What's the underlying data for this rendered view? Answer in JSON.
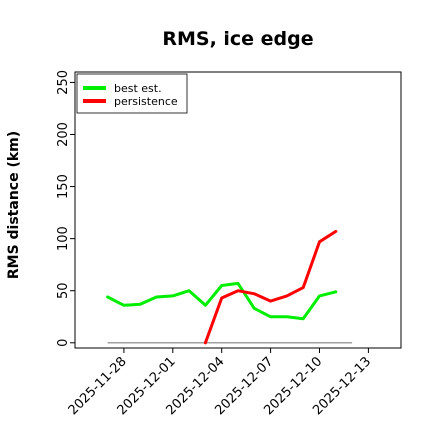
{
  "chart_data": {
    "type": "line",
    "title": "RMS, ice edge",
    "xlabel": "",
    "ylabel": "RMS distance (km)",
    "ylim": [
      -5,
      260
    ],
    "yticks": [
      0,
      50,
      100,
      150,
      200,
      250
    ],
    "xlim": [
      "2025-11-25",
      "2025-12-15"
    ],
    "xticks": [
      "2025-11-28",
      "2025-12-01",
      "2025-12-04",
      "2025-12-07",
      "2025-12-10",
      "2025-12-13"
    ],
    "grid": false,
    "legend": "top-left",
    "baseline": {
      "value": 0,
      "from": "2025-11-27",
      "to": "2025-12-12",
      "color": "#808080"
    },
    "series": [
      {
        "name": "best est.",
        "color": "#00ee00",
        "x": [
          "2025-11-27",
          "2025-11-28",
          "2025-11-29",
          "2025-11-30",
          "2025-12-01",
          "2025-12-02",
          "2025-12-03",
          "2025-12-04",
          "2025-12-05",
          "2025-12-06",
          "2025-12-07",
          "2025-12-08",
          "2025-12-09",
          "2025-12-10",
          "2025-12-11"
        ],
        "values": [
          44,
          36,
          37,
          44,
          45,
          50,
          36,
          55,
          57,
          33,
          25,
          25,
          23,
          45,
          49
        ]
      },
      {
        "name": "persistence",
        "color": "#ff0000",
        "x": [
          "2025-12-03",
          "2025-12-04",
          "2025-12-05",
          "2025-12-06",
          "2025-12-07",
          "2025-12-08",
          "2025-12-09",
          "2025-12-10",
          "2025-12-11"
        ],
        "values": [
          0,
          43,
          50,
          47,
          40,
          45,
          53,
          97,
          107
        ]
      }
    ]
  }
}
